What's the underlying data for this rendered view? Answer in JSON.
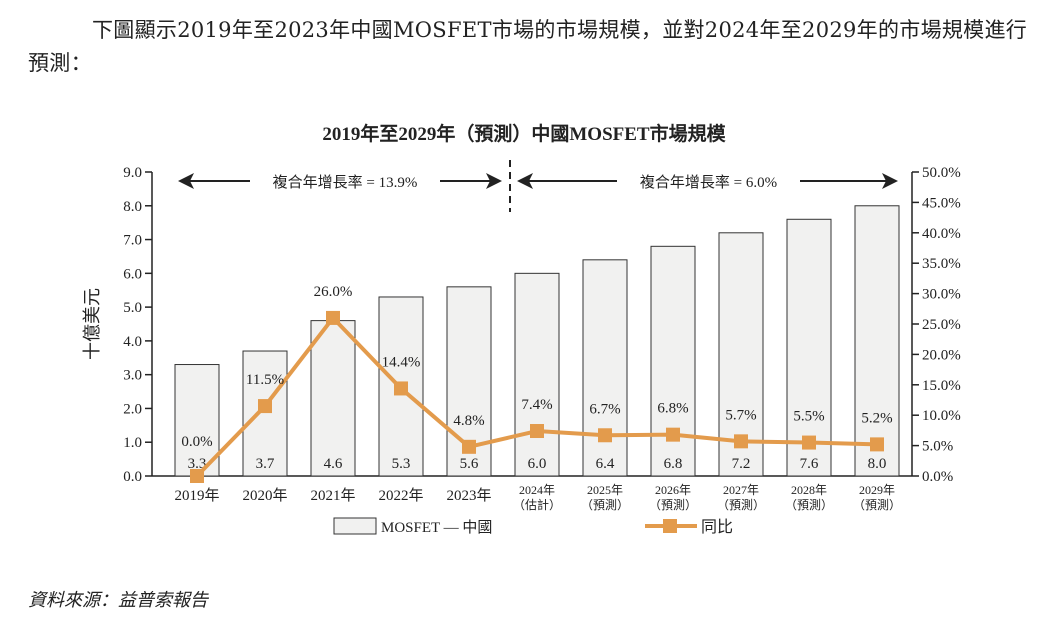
{
  "intro_text": "下圖顯示2019年至2023年中國MOSFET市場的市場規模，並對2024年至2029年的市場規模進行預測：",
  "source": "資料來源：益普索報告",
  "chart_data": {
    "type": "bar",
    "title": "2019年至2029年（預測）中國MOSFET市場規模",
    "ylabel": "十億美元",
    "ylim": [
      0,
      9
    ],
    "y_ticks": [
      "0.0",
      "1.0",
      "2.0",
      "3.0",
      "4.0",
      "5.0",
      "6.0",
      "7.0",
      "8.0",
      "9.0"
    ],
    "y2lim": [
      0,
      50
    ],
    "y2_ticks": [
      "0.0%",
      "5.0%",
      "10.0%",
      "15.0%",
      "20.0%",
      "25.0%",
      "30.0%",
      "35.0%",
      "40.0%",
      "45.0%",
      "50.0%"
    ],
    "categories": [
      "2019年",
      "2020年",
      "2021年",
      "2022年",
      "2023年",
      "2024年",
      "2025年",
      "2026年",
      "2027年",
      "2028年",
      "2029年"
    ],
    "category_sublabels": [
      "",
      "",
      "",
      "",
      "",
      "（估計）",
      "（預測）",
      "（預測）",
      "（預測）",
      "（預測）",
      "（預測）"
    ],
    "series": [
      {
        "name": "MOSFET — 中國",
        "type": "bar",
        "axis": "left",
        "color": "#f1f1f0",
        "values": [
          3.3,
          3.7,
          4.6,
          5.3,
          5.6,
          6.0,
          6.4,
          6.8,
          7.2,
          7.6,
          8.0
        ],
        "labels": [
          "3.3",
          "3.7",
          "4.6",
          "5.3",
          "5.6",
          "6.0",
          "6.4",
          "6.8",
          "7.2",
          "7.6",
          "8.0"
        ]
      },
      {
        "name": "同比",
        "type": "line",
        "axis": "right",
        "color": "#e39b4c",
        "values": [
          0.0,
          11.5,
          26.0,
          14.4,
          4.8,
          7.4,
          6.7,
          6.8,
          5.7,
          5.5,
          5.2
        ],
        "labels": [
          "0.0%",
          "11.5%",
          "26.0%",
          "14.4%",
          "4.8%",
          "7.4%",
          "6.7%",
          "6.8%",
          "5.7%",
          "5.5%",
          "5.2%"
        ]
      }
    ],
    "annotations": [
      {
        "text": "複合年增長率 = 13.9%",
        "span": [
          "2019年",
          "2023年"
        ]
      },
      {
        "text": "複合年增長率 = 6.0%",
        "span": [
          "2024年",
          "2029年"
        ]
      }
    ],
    "legend": "bottom",
    "grid": false
  }
}
